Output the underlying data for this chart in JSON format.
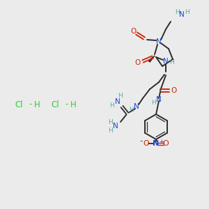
{
  "background_color": "#ebebeb",
  "bond_color": "#2c2c2c",
  "nitrogen_color": "#1a44cc",
  "oxygen_color": "#cc2200",
  "teal_color": "#4aada8",
  "green_color": "#33cc33",
  "figsize": [
    3.0,
    3.0
  ],
  "dpi": 100,
  "hcl1": [
    28,
    152
  ],
  "hcl2": [
    80,
    152
  ]
}
